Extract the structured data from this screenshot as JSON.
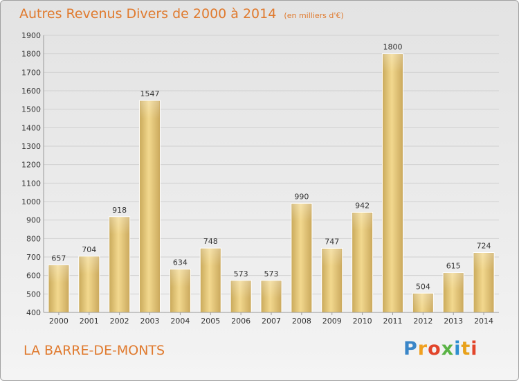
{
  "chart_data": {
    "type": "bar",
    "title": "Autres Revenus Divers de 2000 à 2014",
    "subtitle": "(en milliers d'€)",
    "categories": [
      "2000",
      "2001",
      "2002",
      "2003",
      "2004",
      "2005",
      "2006",
      "2007",
      "2008",
      "2009",
      "2010",
      "2011",
      "2012",
      "2013",
      "2014"
    ],
    "values": [
      657,
      704,
      918,
      1547,
      634,
      748,
      573,
      573,
      990,
      747,
      942,
      1800,
      504,
      615,
      724
    ],
    "ylim": [
      400,
      1900
    ],
    "yticks": [
      400,
      500,
      600,
      700,
      800,
      900,
      1000,
      1100,
      1200,
      1300,
      1400,
      1500,
      1600,
      1700,
      1800,
      1900
    ],
    "xlabel": "",
    "ylabel": "",
    "grid": true,
    "bar_color": "#e6c774"
  },
  "place_name": "LA BARRE-DE-MONTS",
  "logo_text": "Proxiti"
}
